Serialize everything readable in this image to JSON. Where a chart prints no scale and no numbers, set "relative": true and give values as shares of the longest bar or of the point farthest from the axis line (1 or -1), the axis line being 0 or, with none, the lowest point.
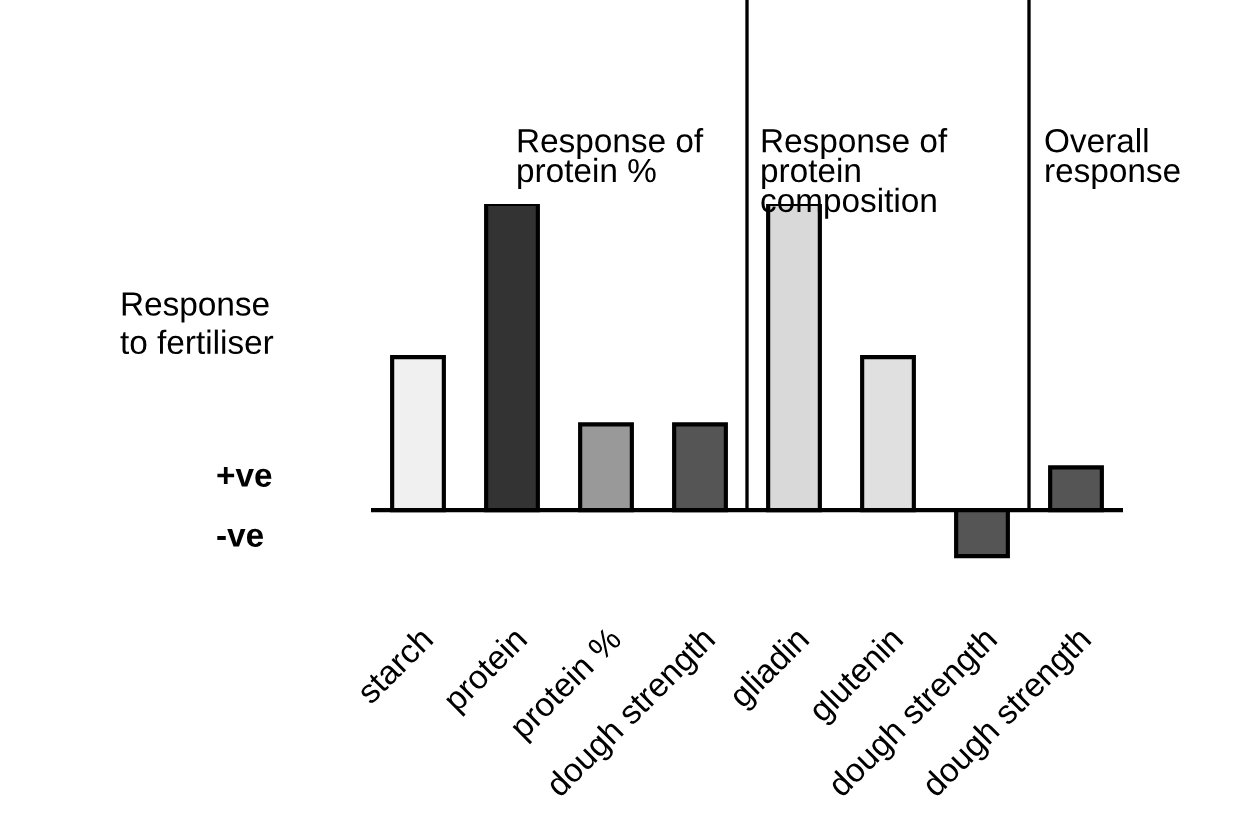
{
  "chart_data": {
    "type": "bar",
    "relative": true,
    "ylabel": "Response\nto fertiliser",
    "categories": [
      "starch",
      "protein",
      "protein %",
      "dough strength",
      "gliadin",
      "glutenin",
      "dough strength",
      "dough strength"
    ],
    "values": [
      0.5,
      1,
      0.28,
      0.28,
      1,
      0.5,
      -0.15,
      0.14
    ],
    "colors": [
      "#f0f0f0",
      "#333333",
      "#999999",
      "#555555",
      "#d9d9d9",
      "#e0e0e0",
      "#555555",
      "#555555"
    ],
    "annotations": [
      "Response of\nprotein %",
      "Response of\nprotein\ncomposition",
      "Overall\nresponse",
      "+ve",
      "-ve"
    ],
    "grid": false,
    "legend": false
  }
}
